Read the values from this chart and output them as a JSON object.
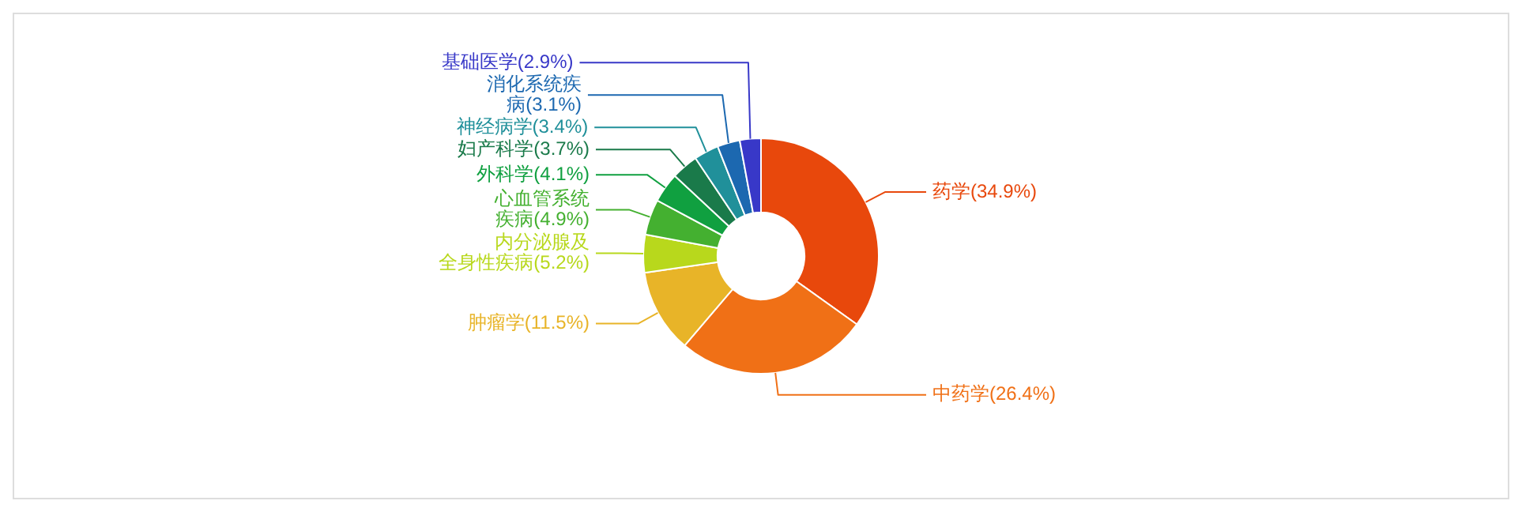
{
  "chart_data": {
    "type": "donut",
    "categories": [
      "药学",
      "中药学",
      "肿瘤学",
      "内分泌腺及全身性疾病",
      "心血管系统疾病",
      "外科学",
      "妇产科学",
      "神经病学",
      "消化系统疾病",
      "基础医学"
    ],
    "values": [
      34.9,
      26.4,
      11.5,
      5.2,
      4.9,
      4.1,
      3.7,
      3.4,
      3.1,
      2.9
    ],
    "value_labels": [
      "(34.9%)",
      "(26.4%)",
      "(11.5%)",
      "(5.2%)",
      "(4.9%)",
      "(4.1%)",
      "(3.7%)",
      "(3.4%)",
      "(3.1%)",
      "(2.9%)"
    ],
    "colors": [
      "#e8480c",
      "#f07016",
      "#e8b428",
      "#b8d81c",
      "#44b030",
      "#10a040",
      "#1a7a4a",
      "#20909a",
      "#1c68b0",
      "#3838c8"
    ],
    "legend": false
  }
}
